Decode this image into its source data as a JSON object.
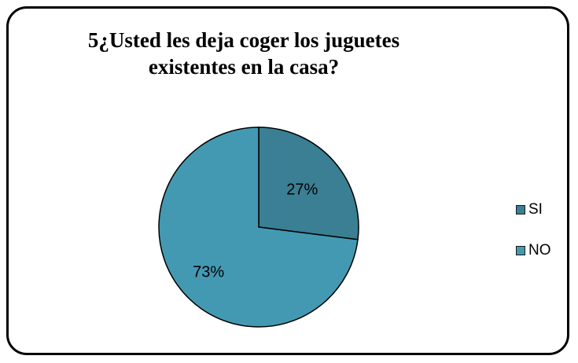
{
  "chart_data": {
    "type": "pie",
    "title": "5¿Usted les deja coger los juguetes existentes en la casa?",
    "title_lines": [
      "5¿Usted les deja coger los juguetes",
      "existentes en la casa?"
    ],
    "categories": [
      "SI",
      "NO"
    ],
    "values": [
      27,
      73
    ],
    "data_labels": [
      "27%",
      "73%"
    ],
    "colors": [
      "#3a7f93",
      "#4499b2"
    ],
    "legend_placement": "right"
  }
}
